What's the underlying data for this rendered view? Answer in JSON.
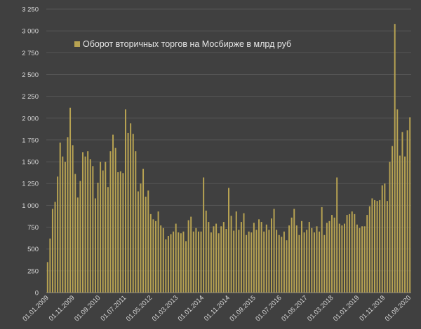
{
  "chart_data": {
    "type": "bar",
    "title": "",
    "xlabel": "",
    "ylabel": "",
    "ylim": [
      0,
      3250
    ],
    "yticks": [
      0,
      250,
      500,
      750,
      1000,
      1250,
      1500,
      1750,
      2000,
      2250,
      2500,
      2750,
      3000,
      3250
    ],
    "ytick_labels": [
      "0",
      "250",
      "500",
      "750",
      "1 000",
      "1 250",
      "1 500",
      "1 750",
      "2 000",
      "2 250",
      "2 500",
      "2 750",
      "3 000",
      "3 250"
    ],
    "grid": true,
    "legend_position": "top-left",
    "bar_color": "#b8a352",
    "x_start": "01.01.2009",
    "x_end": "01.09.2020",
    "xtick_labels": [
      "01.01.2009",
      "01.11.2009",
      "01.09.2010",
      "01.07.2011",
      "01.05.2012",
      "01.03.2013",
      "01.01.2014",
      "01.11.2014",
      "01.09.2015",
      "01.07.2016",
      "01.05.2017",
      "01.03.2018",
      "01.01.2019",
      "01.11.2019",
      "01.09.2020"
    ],
    "series": [
      {
        "name": "Оборот вторичных торгов на Мосбирже в млрд руб",
        "values": [
          350,
          620,
          960,
          1040,
          1330,
          1720,
          1560,
          1500,
          1780,
          2120,
          1690,
          1360,
          1090,
          1280,
          1610,
          1560,
          1620,
          1530,
          1450,
          1080,
          1260,
          1500,
          1400,
          1500,
          1210,
          1620,
          1810,
          1660,
          1380,
          1390,
          1370,
          2100,
          1830,
          1940,
          1820,
          1620,
          1160,
          1250,
          1420,
          1100,
          1170,
          900,
          840,
          820,
          930,
          770,
          740,
          610,
          650,
          670,
          700,
          790,
          690,
          680,
          700,
          590,
          830,
          870,
          700,
          740,
          700,
          700,
          1320,
          940,
          810,
          690,
          760,
          790,
          680,
          760,
          810,
          730,
          1200,
          880,
          710,
          930,
          720,
          810,
          910,
          660,
          700,
          690,
          800,
          720,
          840,
          810,
          700,
          780,
          720,
          850,
          960,
          720,
          660,
          640,
          700,
          600,
          770,
          860,
          960,
          770,
          660,
          820,
          690,
          720,
          810,
          740,
          690,
          760,
          700,
          980,
          660,
          800,
          820,
          890,
          860,
          1320,
          790,
          770,
          790,
          890,
          900,
          930,
          900,
          780,
          740,
          760,
          760,
          890,
          990,
          1080,
          1060,
          1050,
          1060,
          1230,
          1250,
          1050,
          1500,
          1680,
          3080,
          2100,
          1570,
          1840,
          1560,
          1860,
          2010
        ]
      }
    ]
  }
}
